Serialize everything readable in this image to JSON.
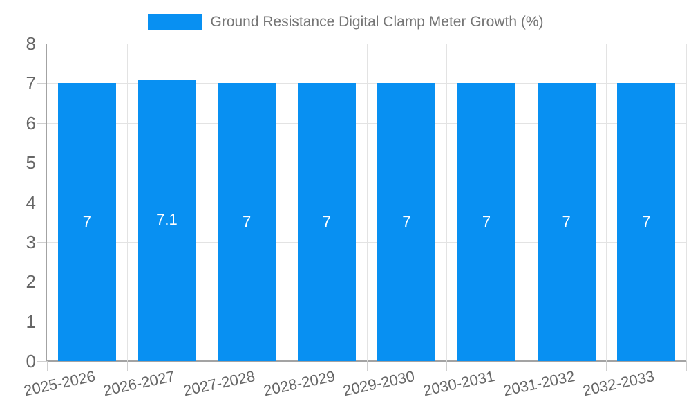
{
  "chart_data": {
    "type": "bar",
    "title": "Ground Resistance Digital Clamp Meter Growth (%)",
    "categories": [
      "2025-2026",
      "2026-2027",
      "2027-2028",
      "2028-2029",
      "2029-2030",
      "2030-2031",
      "2031-2032",
      "2032-2033"
    ],
    "values": [
      7,
      7.1,
      7,
      7,
      7,
      7,
      7,
      7
    ],
    "bar_labels": [
      "7",
      "7.1",
      "7",
      "7",
      "7",
      "7",
      "7",
      "7"
    ],
    "xlabel": "",
    "ylabel": "",
    "ylim": [
      0,
      8
    ],
    "yticks": [
      0,
      1,
      2,
      3,
      4,
      5,
      6,
      7,
      8
    ],
    "grid": true,
    "legend_position": "top",
    "x_tick_rotation_deg": -12,
    "colors": {
      "bar": "#0890f2",
      "grid": "#e3e3e3",
      "axis": "#a3a3a3",
      "tick": "#cfcfcf",
      "tick_text": "#666666",
      "legend_text": "#757575",
      "bar_label_text": "#ffffff",
      "background": "#ffffff"
    }
  }
}
